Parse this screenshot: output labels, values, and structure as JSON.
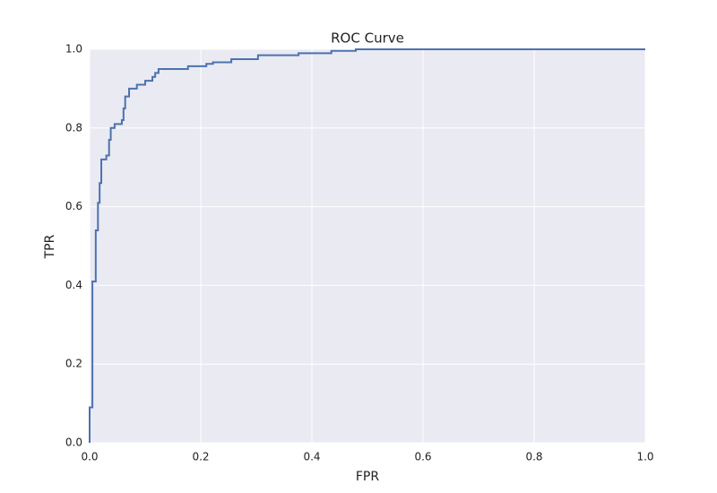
{
  "chart_data": {
    "type": "line",
    "title": "ROC Curve",
    "x_label": "FPR",
    "y_label": "TPR",
    "x": [
      0.0,
      0.0,
      0.005,
      0.005,
      0.011,
      0.011,
      0.015,
      0.015,
      0.018,
      0.018,
      0.021,
      0.021,
      0.03,
      0.03,
      0.035,
      0.035,
      0.038,
      0.038,
      0.045,
      0.045,
      0.058,
      0.058,
      0.061,
      0.061,
      0.064,
      0.064,
      0.071,
      0.071,
      0.085,
      0.085,
      0.1,
      0.1,
      0.113,
      0.113,
      0.118,
      0.118,
      0.124,
      0.124,
      0.177,
      0.177,
      0.21,
      0.21,
      0.222,
      0.222,
      0.255,
      0.255,
      0.303,
      0.303,
      0.376,
      0.376,
      0.435,
      0.435,
      0.479,
      0.479,
      1.0
    ],
    "values": [
      0.0,
      0.09,
      0.09,
      0.41,
      0.41,
      0.54,
      0.54,
      0.61,
      0.61,
      0.66,
      0.66,
      0.72,
      0.72,
      0.73,
      0.73,
      0.77,
      0.77,
      0.8,
      0.8,
      0.81,
      0.81,
      0.82,
      0.82,
      0.85,
      0.85,
      0.88,
      0.88,
      0.9,
      0.9,
      0.91,
      0.91,
      0.92,
      0.92,
      0.93,
      0.93,
      0.94,
      0.94,
      0.95,
      0.95,
      0.957,
      0.957,
      0.963,
      0.963,
      0.967,
      0.967,
      0.975,
      0.975,
      0.985,
      0.985,
      0.99,
      0.99,
      0.996,
      0.996,
      1.0,
      1.0
    ],
    "color": "#4c72b0",
    "xlim": [
      0,
      1
    ],
    "ylim": [
      0,
      1
    ],
    "xticks": [
      {
        "value": 0,
        "label": "0.0"
      },
      0.2,
      0.4,
      0.6,
      0.8,
      {
        "value": 1,
        "label": "1.0"
      }
    ],
    "yticks": [
      {
        "value": 0,
        "label": "0.0"
      },
      0.2,
      0.4,
      0.6,
      0.8,
      {
        "value": 1,
        "label": "1.0"
      }
    ],
    "grid": true
  }
}
